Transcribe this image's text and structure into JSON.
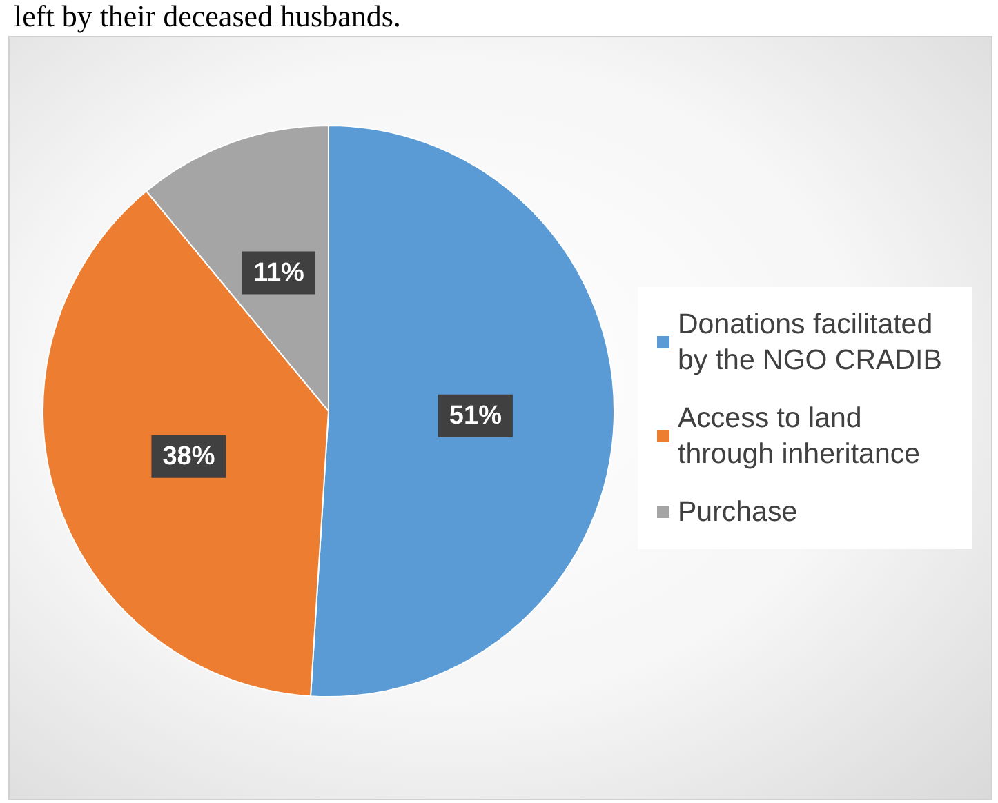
{
  "chart_data": {
    "type": "pie",
    "categories": [
      "Donations facilitated by the NGO CRADIB",
      "Access to land through inheritance",
      "Purchase"
    ],
    "values": [
      51,
      38,
      11
    ],
    "colors": [
      "#5b9bd5",
      "#ed7d31",
      "#a5a5a5"
    ],
    "value_labels": [
      "51%",
      "38%",
      "11%"
    ],
    "legend": "right",
    "annotations": [
      "left by their deceased husbands."
    ]
  }
}
